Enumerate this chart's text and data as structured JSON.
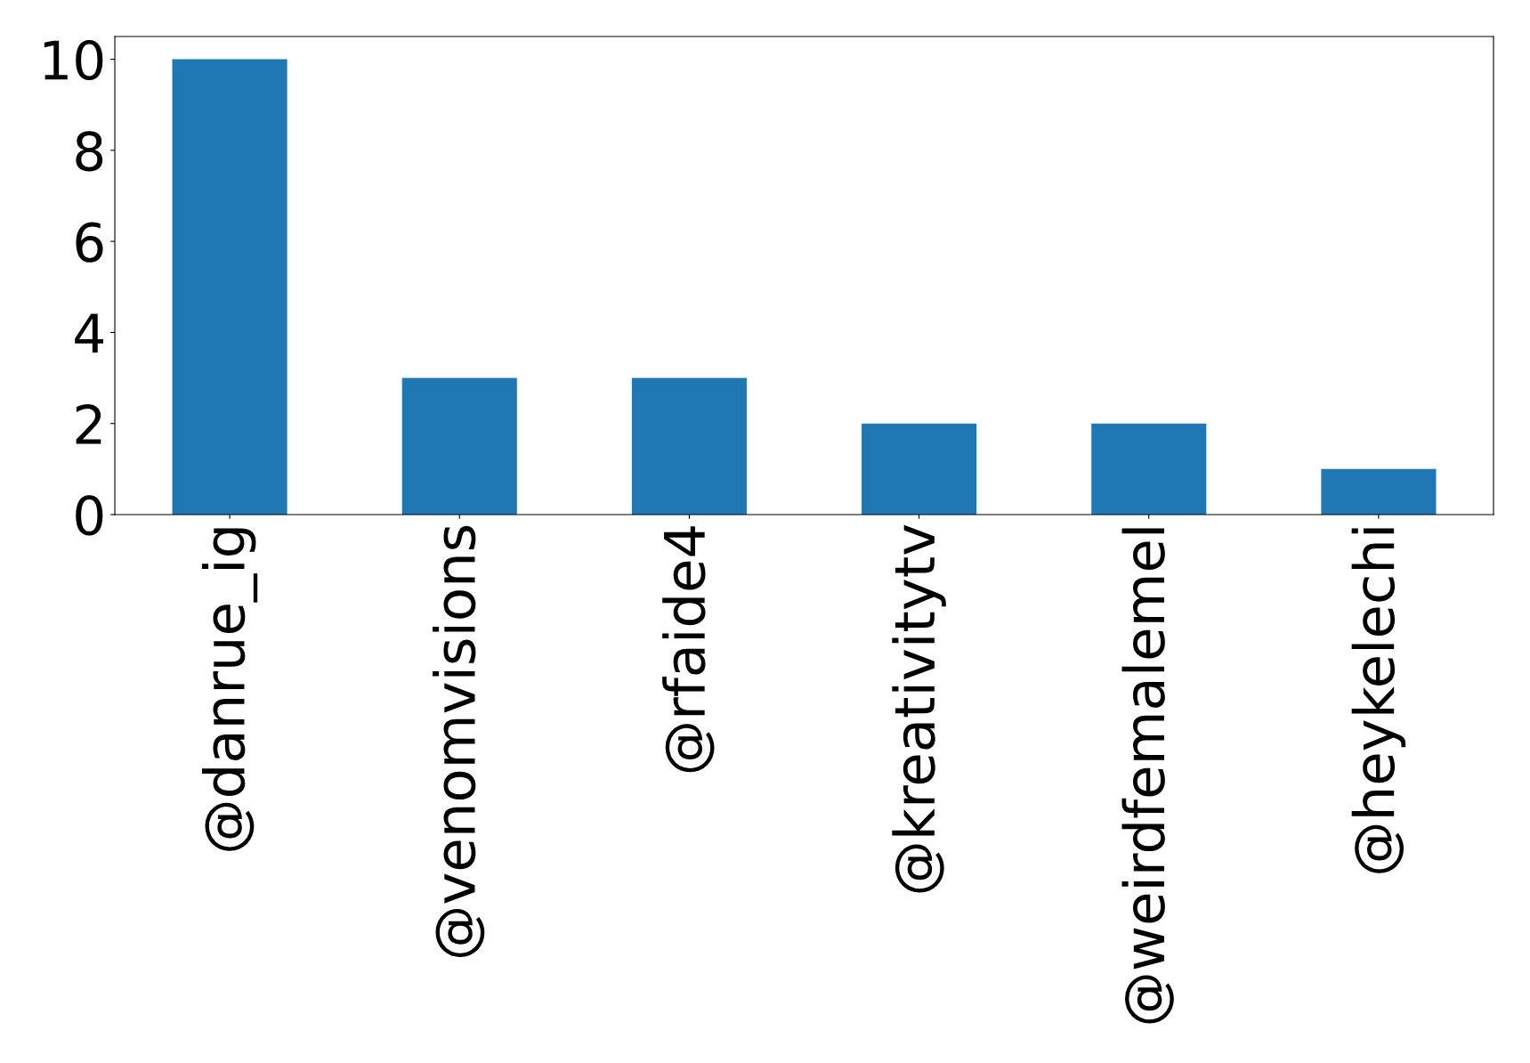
{
  "chart_data": {
    "type": "bar",
    "categories": [
      "@danrue_ig",
      "@venomvisions",
      "@rfaide4",
      "@kreativitytv",
      "@weirdfemalemel",
      "@heykelechi"
    ],
    "values": [
      10,
      3,
      3,
      2,
      2,
      1
    ],
    "color": "#1f77b4",
    "ylim": [
      0,
      10.5
    ],
    "yticks": [
      0,
      2,
      4,
      6,
      8,
      10
    ],
    "grid": false
  }
}
